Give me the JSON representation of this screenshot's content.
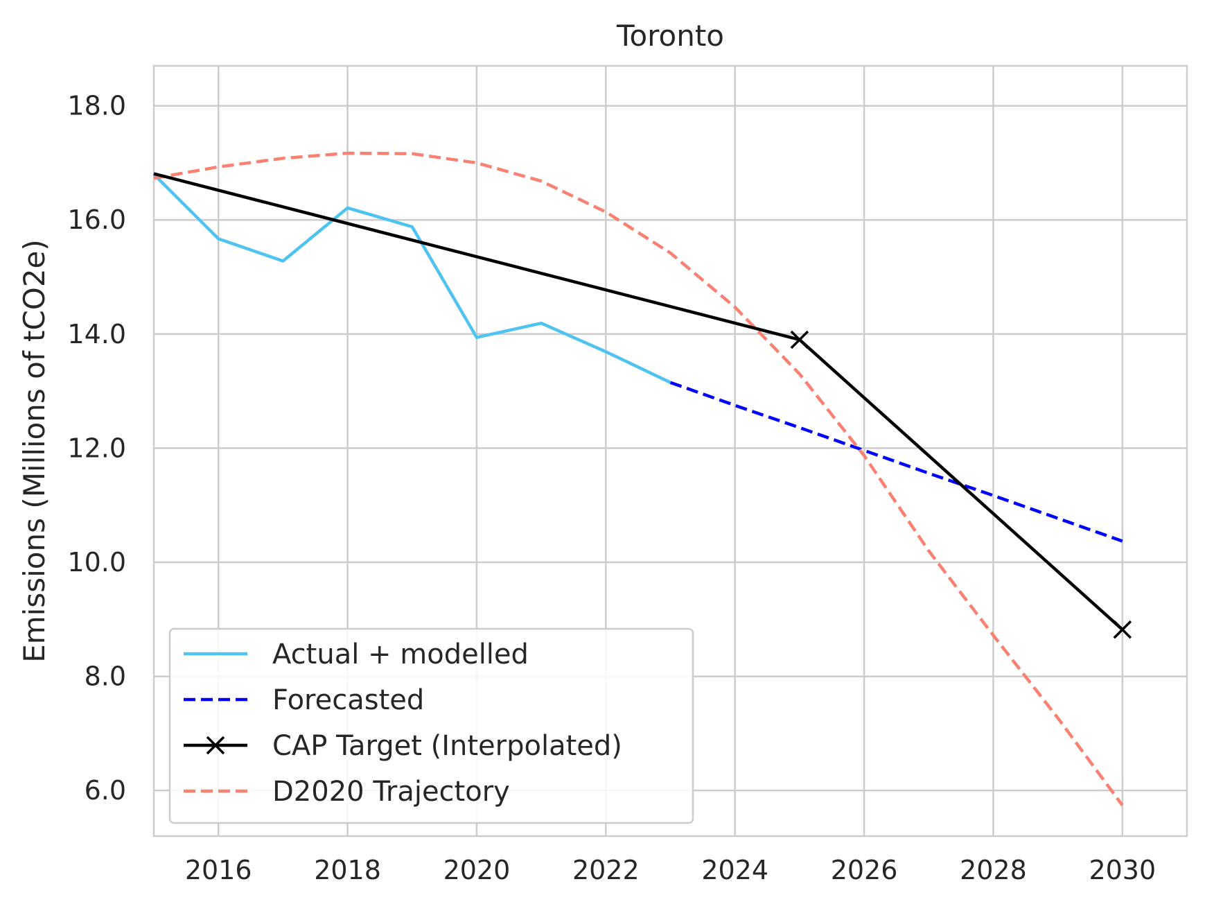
{
  "chart_data": {
    "type": "line",
    "title": "Toronto",
    "xlabel": "",
    "ylabel": "Emissions (Millions of tCO2e)",
    "xlim": [
      2015,
      2031
    ],
    "ylim": [
      5.2,
      18.7
    ],
    "xticks": [
      2016,
      2018,
      2020,
      2022,
      2024,
      2026,
      2028,
      2030
    ],
    "xtick_labels": [
      "2016",
      "2018",
      "2020",
      "2022",
      "2024",
      "2026",
      "2028",
      "2030"
    ],
    "yticks": [
      6.0,
      8.0,
      10.0,
      12.0,
      14.0,
      16.0,
      18.0
    ],
    "ytick_labels": [
      "6.0",
      "8.0",
      "10.0",
      "12.0",
      "14.0",
      "16.0",
      "18.0"
    ],
    "grid": true,
    "legend_position": "lower-left",
    "series": [
      {
        "name": "Actual + modelled",
        "color": "#4fc3f0",
        "style": "solid",
        "marker": "none",
        "x": [
          2015,
          2016,
          2017,
          2018,
          2019,
          2020,
          2021,
          2022,
          2023
        ],
        "y": [
          16.8,
          15.67,
          15.28,
          16.21,
          15.88,
          13.94,
          14.19,
          13.69,
          13.15
        ]
      },
      {
        "name": "Forecasted",
        "color": "#0000ff",
        "style": "dashed",
        "marker": "none",
        "x": [
          2023,
          2024,
          2025,
          2026,
          2027,
          2028,
          2029,
          2030
        ],
        "y": [
          13.15,
          12.75,
          12.36,
          11.96,
          11.56,
          11.17,
          10.77,
          10.37
        ]
      },
      {
        "name": "CAP Target (Interpolated)",
        "color": "#000000",
        "style": "solid",
        "marker": "x",
        "marker_x": [
          2025,
          2030
        ],
        "x": [
          2015,
          2025,
          2030
        ],
        "y": [
          16.81,
          13.9,
          8.82
        ]
      },
      {
        "name": "D2020 Trajectory",
        "color": "#fa8072",
        "style": "dashed",
        "marker": "none",
        "x": [
          2015,
          2016,
          2017,
          2018,
          2019,
          2020,
          2021,
          2022,
          2023,
          2024,
          2025,
          2026,
          2027,
          2028,
          2029,
          2030
        ],
        "y": [
          16.73,
          16.93,
          17.08,
          17.17,
          17.16,
          17.0,
          16.68,
          16.14,
          15.42,
          14.47,
          13.3,
          11.87,
          10.2,
          8.72,
          7.27,
          5.74
        ]
      }
    ]
  }
}
